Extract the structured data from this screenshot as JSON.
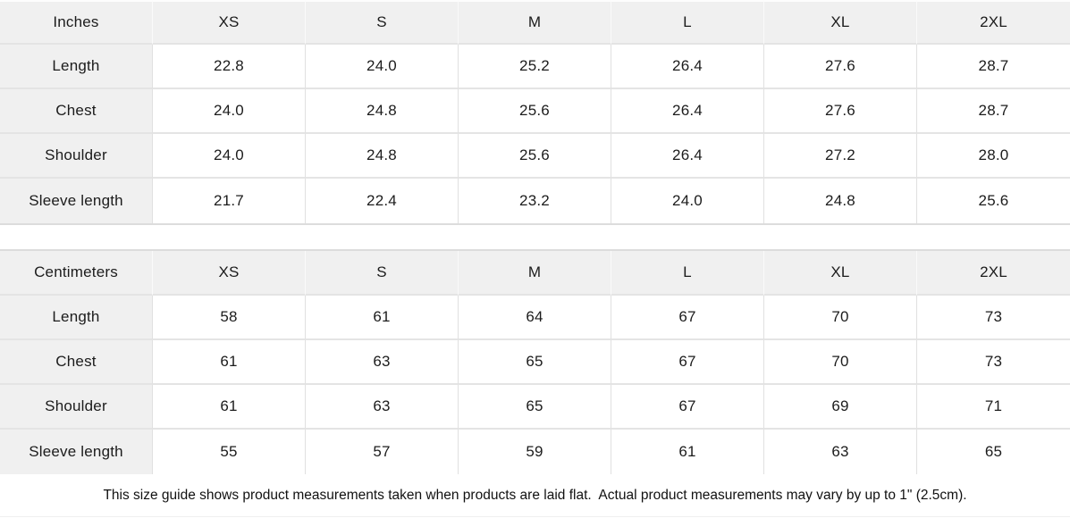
{
  "tables": [
    {
      "unit": "Inches",
      "sizes": [
        "XS",
        "S",
        "M",
        "L",
        "XL",
        "2XL"
      ],
      "rows": [
        {
          "label": "Length",
          "values": [
            "22.8",
            "24.0",
            "25.2",
            "26.4",
            "27.6",
            "28.7"
          ]
        },
        {
          "label": "Chest",
          "values": [
            "24.0",
            "24.8",
            "25.6",
            "26.4",
            "27.6",
            "28.7"
          ]
        },
        {
          "label": "Shoulder",
          "values": [
            "24.0",
            "24.8",
            "25.6",
            "26.4",
            "27.2",
            "28.0"
          ]
        },
        {
          "label": "Sleeve length",
          "values": [
            "21.7",
            "22.4",
            "23.2",
            "24.0",
            "24.8",
            "25.6"
          ]
        }
      ]
    },
    {
      "unit": "Centimeters",
      "sizes": [
        "XS",
        "S",
        "M",
        "L",
        "XL",
        "2XL"
      ],
      "rows": [
        {
          "label": "Length",
          "values": [
            "58",
            "61",
            "64",
            "67",
            "70",
            "73"
          ]
        },
        {
          "label": "Chest",
          "values": [
            "61",
            "63",
            "65",
            "67",
            "70",
            "73"
          ]
        },
        {
          "label": "Shoulder",
          "values": [
            "61",
            "63",
            "65",
            "67",
            "69",
            "71"
          ]
        },
        {
          "label": "Sleeve length",
          "values": [
            "55",
            "57",
            "59",
            "61",
            "63",
            "65"
          ]
        }
      ]
    }
  ],
  "footer": {
    "note": "This size guide shows product measurements taken when products are laid flat.  Actual product measurements may vary by up to 1\" (2.5cm)."
  },
  "colors": {
    "header_bg": "#f0f0f0",
    "cell_bg": "#ffffff",
    "border": "#e0e0e0",
    "gap_border": "#dcdcdc",
    "text": "#1c1c1c"
  }
}
